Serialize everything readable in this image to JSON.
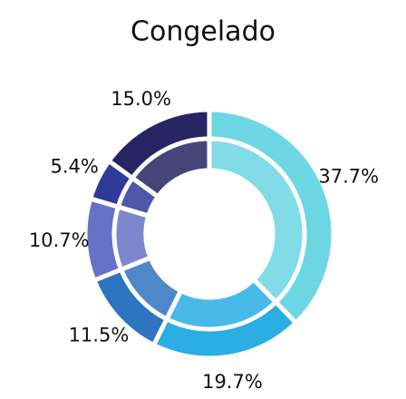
{
  "chart_data": {
    "type": "donut",
    "title": "Congelado",
    "values": [
      37.7,
      19.7,
      11.5,
      10.7,
      5.4,
      15.0
    ],
    "value_labels": [
      "37.7%",
      "19.7%",
      "11.5%",
      "10.7%",
      "5.4%",
      "15.0%"
    ],
    "colors": [
      "#6dd6e3",
      "#2aaee3",
      "#2f74c0",
      "#6672c6",
      "#2f3a9a",
      "#272463"
    ]
  }
}
